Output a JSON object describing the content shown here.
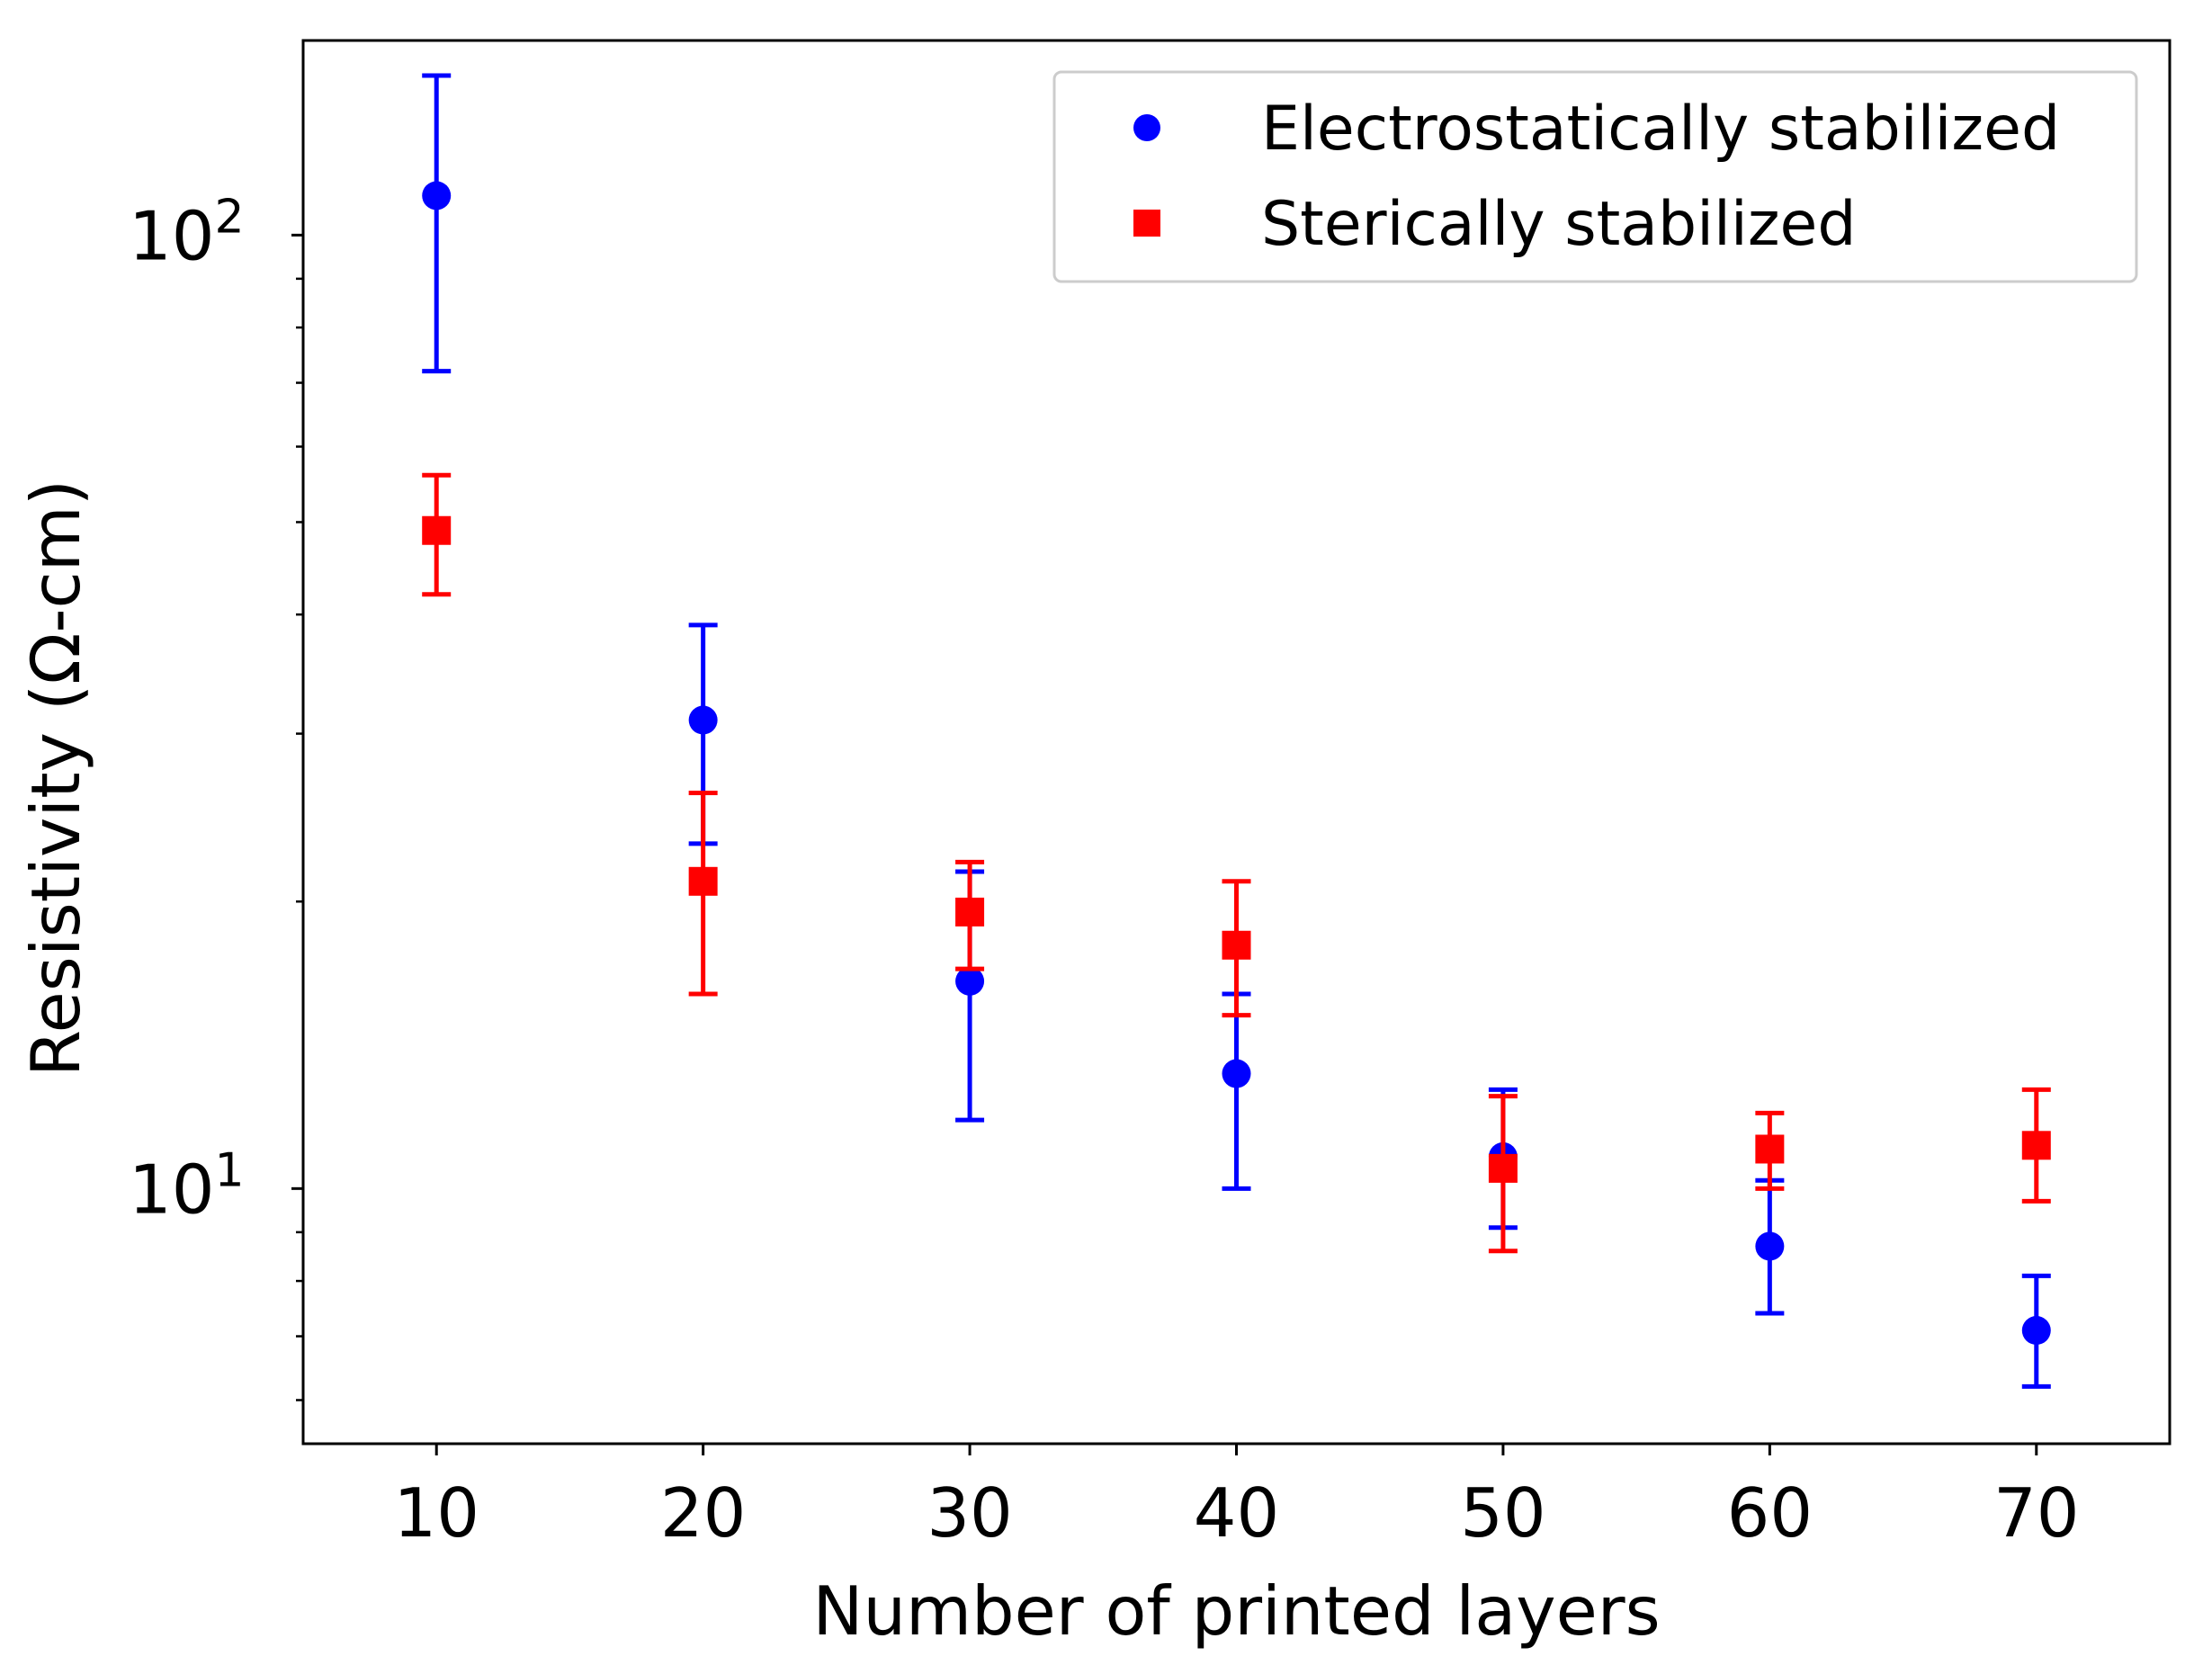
{
  "chart_data": {
    "type": "scatter",
    "title": "",
    "xlabel": "Number of printed layers",
    "ylabel": "Resistivity (Ω-cm)",
    "xlim": [
      5,
      75
    ],
    "ylim": [
      5.4,
      160
    ],
    "yscale": "log",
    "x_ticks": [
      10,
      20,
      30,
      40,
      50,
      60,
      70
    ],
    "x_tick_labels": [
      "10",
      "20",
      "30",
      "40",
      "50",
      "60",
      "70"
    ],
    "y_major_ticks": [
      {
        "value": 10,
        "base": "10",
        "exp": "1"
      },
      {
        "value": 100,
        "base": "10",
        "exp": "2"
      }
    ],
    "y_minor_ticks": [
      6,
      7,
      8,
      9,
      20,
      30,
      40,
      50,
      60,
      70,
      80,
      90
    ],
    "grid": false,
    "legend_position": "top-right",
    "series": [
      {
        "name": "Electrostatically stabilized",
        "color": "#0000ff",
        "marker": "circle",
        "x": [
          10,
          20,
          30,
          40,
          50,
          60,
          70
        ],
        "y": [
          110,
          31,
          16.5,
          13.2,
          10.8,
          8.7,
          7.1
        ],
        "err_low": [
          72,
          23,
          11.8,
          10.0,
          9.1,
          7.4,
          6.2
        ],
        "err_high": [
          147,
          39,
          21.5,
          16.0,
          12.7,
          10.2,
          8.1
        ]
      },
      {
        "name": "Sterically stabilized",
        "color": "#ff0000",
        "marker": "square",
        "x": [
          10,
          20,
          30,
          40,
          50,
          60,
          70
        ],
        "y": [
          49,
          21,
          19.5,
          18.0,
          10.5,
          11.0,
          11.1
        ],
        "err_low": [
          42,
          16,
          17.0,
          15.2,
          8.6,
          10.0,
          9.7
        ],
        "err_high": [
          56,
          26,
          22.0,
          21.0,
          12.5,
          12.0,
          12.7
        ]
      }
    ]
  }
}
